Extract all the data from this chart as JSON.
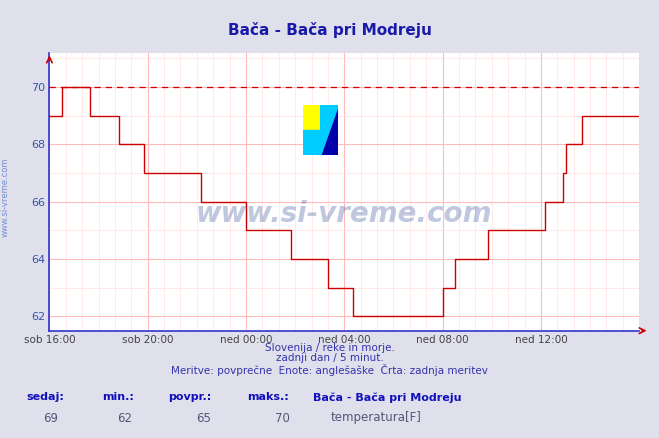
{
  "title": "Bača - Bača pri Modreju",
  "title_color": "#1a1aaa",
  "bg_color": "#dfe0ec",
  "plot_bg_color": "#ffffff",
  "line_color": "#cc0000",
  "axis_spine_color": "#3333cc",
  "grid_color_major": "#ffbbbb",
  "grid_color_minor": "#ffe0e0",
  "watermark_text": "www.si-vreme.com",
  "watermark_color": "#1a3a8a",
  "watermark_alpha": 0.28,
  "ylabel_text": "www.si-vreme.com",
  "ylabel_color": "#6688cc",
  "subtitle1": "Slovenija / reke in morje.",
  "subtitle2": "zadnji dan / 5 minut.",
  "subtitle3": "Meritve: povprečne  Enote: anglešaške  Črta: zadnja meritev",
  "subtitle_color": "#3333aa",
  "footer_label1": "sedaj:",
  "footer_label2": "min.:",
  "footer_label3": "povpr.:",
  "footer_label4": "maks.:",
  "footer_val1": "69",
  "footer_val2": "62",
  "footer_val3": "65",
  "footer_val4": "70",
  "footer_series": "Bača - Bača pri Modreju",
  "footer_legend": "temperatura[F]",
  "legend_color": "#cc0000",
  "ylim": [
    61.5,
    71.2
  ],
  "yticks": [
    62,
    64,
    66,
    68,
    70
  ],
  "max_line_y": 70,
  "xtick_labels": [
    "sob 16:00",
    "sob 20:00",
    "ned 00:00",
    "ned 04:00",
    "ned 08:00",
    "ned 12:00"
  ],
  "xtick_positions": [
    0,
    48,
    96,
    144,
    192,
    240
  ],
  "total_points": 289,
  "temperature_data": [
    69,
    69,
    69,
    69,
    69,
    69,
    70,
    70,
    70,
    70,
    70,
    70,
    70,
    70,
    70,
    70,
    70,
    70,
    70,
    70,
    69,
    69,
    69,
    69,
    69,
    69,
    69,
    69,
    69,
    69,
    69,
    69,
    69,
    69,
    68,
    68,
    68,
    68,
    68,
    68,
    68,
    68,
    68,
    68,
    68,
    68,
    67,
    67,
    67,
    67,
    67,
    67,
    67,
    67,
    67,
    67,
    67,
    67,
    67,
    67,
    67,
    67,
    67,
    67,
    67,
    67,
    67,
    67,
    67,
    67,
    67,
    67,
    67,
    67,
    66,
    66,
    66,
    66,
    66,
    66,
    66,
    66,
    66,
    66,
    66,
    66,
    66,
    66,
    66,
    66,
    66,
    66,
    66,
    66,
    66,
    66,
    65,
    65,
    65,
    65,
    65,
    65,
    65,
    65,
    65,
    65,
    65,
    65,
    65,
    65,
    65,
    65,
    65,
    65,
    65,
    65,
    65,
    65,
    64,
    64,
    64,
    64,
    64,
    64,
    64,
    64,
    64,
    64,
    64,
    64,
    64,
    64,
    64,
    64,
    64,
    64,
    63,
    63,
    63,
    63,
    63,
    63,
    63,
    63,
    63,
    63,
    63,
    63,
    62,
    62,
    62,
    62,
    62,
    62,
    62,
    62,
    62,
    62,
    62,
    62,
    62,
    62,
    62,
    62,
    62,
    62,
    62,
    62,
    62,
    62,
    62,
    62,
    62,
    62,
    62,
    62,
    62,
    62,
    62,
    62,
    62,
    62,
    62,
    62,
    62,
    62,
    62,
    62,
    62,
    62,
    62,
    62,
    63,
    63,
    63,
    63,
    63,
    63,
    64,
    64,
    64,
    64,
    64,
    64,
    64,
    64,
    64,
    64,
    64,
    64,
    64,
    64,
    64,
    64,
    65,
    65,
    65,
    65,
    65,
    65,
    65,
    65,
    65,
    65,
    65,
    65,
    65,
    65,
    65,
    65,
    65,
    65,
    65,
    65,
    65,
    65,
    65,
    65,
    65,
    65,
    65,
    65,
    66,
    66,
    66,
    66,
    66,
    66,
    66,
    66,
    66,
    67,
    68,
    68,
    68,
    68,
    68,
    68,
    68,
    68,
    69,
    69,
    69,
    69,
    69,
    69,
    69,
    69,
    69,
    69,
    69,
    69,
    69,
    69,
    69,
    69,
    69,
    69,
    69,
    69,
    69,
    69,
    69,
    69,
    69,
    69,
    69,
    69,
    69
  ]
}
